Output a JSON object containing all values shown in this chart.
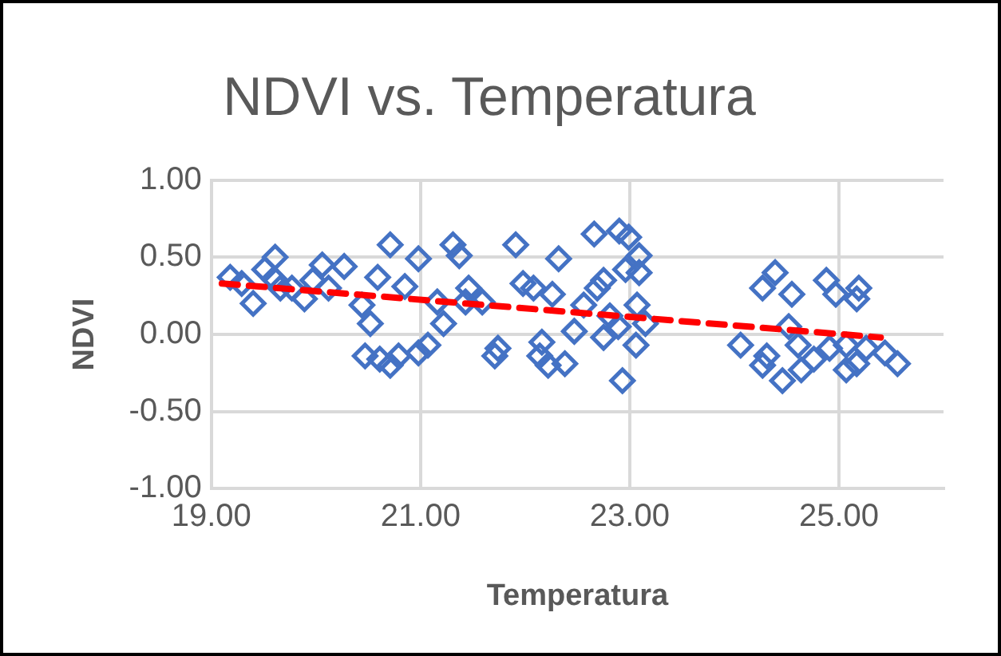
{
  "chart_data": {
    "type": "scatter",
    "title": "NDVI vs. Temperatura",
    "xlabel": "Temperatura",
    "ylabel": "NDVI",
    "xlim": [
      19,
      26
    ],
    "xticks": [
      {
        "value": 19,
        "label": "19.00"
      },
      {
        "value": 21,
        "label": "21.00"
      },
      {
        "value": 23,
        "label": "23.00"
      },
      {
        "value": 25,
        "label": "25.00"
      }
    ],
    "ylim": [
      -1,
      1
    ],
    "yticks": [
      {
        "value": -1,
        "label": "-1.00"
      },
      {
        "value": -0.5,
        "label": "-0.50"
      },
      {
        "value": 0,
        "label": "0.00"
      },
      {
        "value": 0.5,
        "label": "0.50"
      },
      {
        "value": 1,
        "label": "1.00"
      }
    ],
    "grid": true,
    "legend": false,
    "marker": "diamond",
    "series": [
      {
        "color": "#4472c4",
        "x": [
          19.18,
          19.29,
          19.4,
          19.51,
          19.61,
          19.6,
          19.66,
          19.77,
          19.89,
          19.97,
          20.06,
          20.12,
          20.27,
          20.44,
          20.52,
          20.47,
          20.61,
          20.71,
          20.79,
          20.59,
          20.71,
          20.85,
          20.98,
          20.98,
          21.07,
          21.16,
          21.22,
          21.31,
          21.37,
          21.46,
          21.43,
          21.59,
          21.71,
          21.74,
          21.91,
          21.98,
          22.08,
          22.16,
          22.14,
          22.22,
          22.26,
          22.32,
          22.38,
          22.47,
          22.56,
          22.66,
          22.69,
          22.75,
          22.75,
          22.81,
          22.9,
          22.93,
          22.89,
          22.99,
          22.96,
          23.09,
          23.07,
          23.09,
          23.06,
          23.15,
          24.06,
          24.27,
          24.39,
          24.31,
          24.27,
          24.55,
          24.52,
          24.61,
          24.46,
          24.64,
          24.76,
          24.88,
          24.97,
          24.91,
          25.07,
          25.07,
          25.19,
          25.17,
          25.26,
          25.44,
          25.56,
          25.17
        ],
        "values": [
          0.37,
          0.33,
          0.2,
          0.42,
          0.5,
          0.36,
          0.3,
          0.3,
          0.23,
          0.35,
          0.45,
          0.3,
          0.44,
          0.19,
          0.07,
          -0.14,
          -0.16,
          -0.2,
          -0.14,
          0.37,
          0.58,
          0.31,
          0.49,
          -0.12,
          -0.07,
          0.21,
          0.07,
          0.58,
          0.51,
          0.3,
          0.21,
          0.21,
          -0.14,
          -0.09,
          0.58,
          0.33,
          0.3,
          -0.05,
          -0.14,
          -0.2,
          0.26,
          0.49,
          -0.19,
          0.02,
          0.19,
          0.65,
          0.3,
          0.35,
          -0.02,
          0.12,
          0.67,
          -0.3,
          0.05,
          0.63,
          0.42,
          0.51,
          0.19,
          0.4,
          -0.07,
          0.07,
          -0.07,
          0.3,
          0.4,
          -0.14,
          -0.2,
          0.26,
          0.05,
          -0.07,
          -0.3,
          -0.23,
          -0.16,
          0.35,
          0.26,
          -0.09,
          -0.23,
          -0.07,
          0.3,
          0.23,
          -0.09,
          -0.12,
          -0.19,
          -0.19
        ]
      },
      {
        "type": "line",
        "color": "#ff0000",
        "marker": "none",
        "line_style": "dashed",
        "x": [
          19.1,
          25.4
        ],
        "values": [
          0.33,
          -0.02
        ]
      }
    ]
  }
}
